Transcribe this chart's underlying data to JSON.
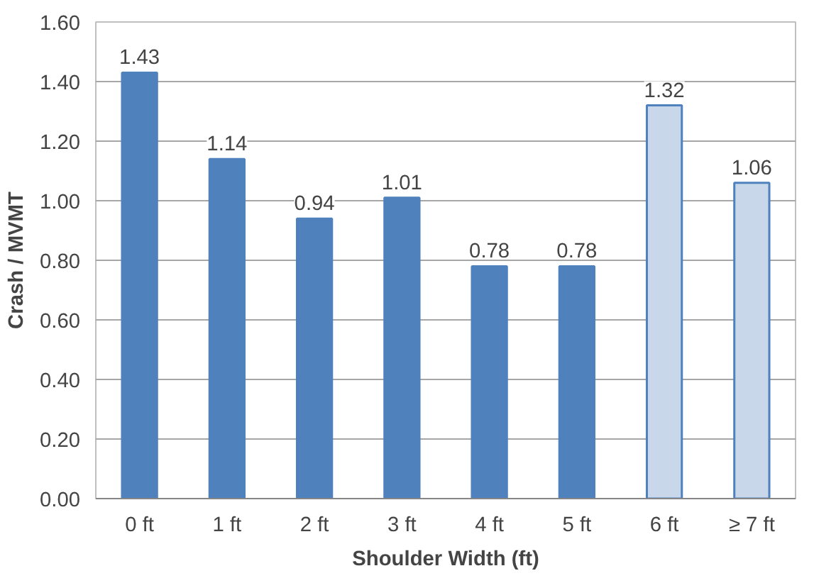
{
  "chart_data": {
    "type": "bar",
    "xlabel": "Shoulder Width (ft)",
    "ylabel": "Crash / MVMT",
    "categories": [
      "0 ft",
      "1 ft",
      "2 ft",
      "3 ft",
      "4 ft",
      "5 ft",
      "6 ft",
      "≥ 7 ft"
    ],
    "values": [
      1.43,
      1.14,
      0.94,
      1.01,
      0.78,
      0.78,
      1.32,
      1.06
    ],
    "value_labels": [
      "1.43",
      "1.14",
      "0.94",
      "1.01",
      "0.78",
      "0.78",
      "1.32",
      "1.06"
    ],
    "colors": [
      "#4f81bd",
      "#4f81bd",
      "#4f81bd",
      "#4f81bd",
      "#4f81bd",
      "#4f81bd",
      "#c9d7ea",
      "#c9d7ea"
    ],
    "ylim": [
      0,
      1.6
    ],
    "yticks": [
      {
        "value": 0,
        "label": "0.00"
      },
      {
        "value": 0.2,
        "label": "0.20"
      },
      {
        "value": 0.4,
        "label": "0.40"
      },
      {
        "value": 0.6,
        "label": "0.60"
      },
      {
        "value": 0.8,
        "label": "0.80"
      },
      {
        "value": 1.0,
        "label": "1.00"
      },
      {
        "value": 1.2,
        "label": "1.20"
      },
      {
        "value": 1.4,
        "label": "1.40"
      },
      {
        "value": 1.6,
        "label": "1.60"
      }
    ],
    "grid": "y"
  }
}
